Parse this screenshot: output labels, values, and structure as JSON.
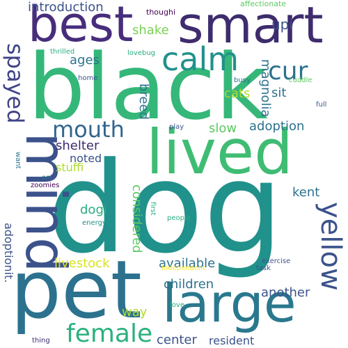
{
  "colors": {
    "dark_purple": "#440154",
    "indigo": "#472d7b",
    "blue": "#3b528b",
    "steel": "#2c728e",
    "teal": "#21918c",
    "green_teal": "#28ae80",
    "green": "#5ec962",
    "lime": "#addc30",
    "yellow": "#fde725"
  },
  "words": [
    {
      "text": "dog",
      "color": "#21918c"
    },
    {
      "text": "black",
      "color": "#35b779"
    },
    {
      "text": "pet",
      "color": "#2c728e"
    },
    {
      "text": "best",
      "color": "#472d7b"
    },
    {
      "text": "smart",
      "color": "#3e2c6e"
    },
    {
      "text": "lived",
      "color": "#3fbc73"
    },
    {
      "text": "mind",
      "color": "#3b528b"
    },
    {
      "text": "large",
      "color": "#2a788e"
    },
    {
      "text": "calm",
      "color": "#21918c"
    },
    {
      "text": "female",
      "color": "#2cb17e"
    },
    {
      "text": "mouth",
      "color": "#31668e"
    },
    {
      "text": "yellow",
      "color": "#3b528b"
    },
    {
      "text": "cur",
      "color": "#2c728e"
    },
    {
      "text": "spayed",
      "color": "#414487"
    },
    {
      "text": "introduction",
      "color": "#3b528b"
    },
    {
      "text": "shake",
      "color": "#7ad151"
    },
    {
      "text": "upi",
      "color": "#3b528b"
    },
    {
      "text": "ages",
      "color": "#2c728e"
    },
    {
      "text": "breed",
      "color": "#2c728e"
    },
    {
      "text": "magnolia",
      "color": "#2c728e"
    },
    {
      "text": "sit",
      "color": "#2c728e"
    },
    {
      "text": "cats",
      "color": "#addc30"
    },
    {
      "text": "adoption",
      "color": "#2c728e"
    },
    {
      "text": "slow",
      "color": "#5ec962"
    },
    {
      "text": "shelter",
      "color": "#3e2c6e"
    },
    {
      "text": "noted",
      "color": "#3b528b"
    },
    {
      "text": "stuffi",
      "color": "#addc30"
    },
    {
      "text": "dogi",
      "color": "#28ae80"
    },
    {
      "text": "considered",
      "color": "#5ec962"
    },
    {
      "text": "kent",
      "color": "#2c728e"
    },
    {
      "text": "adoptionit.",
      "color": "#3b528b"
    },
    {
      "text": "livestock",
      "color": "#d8e219"
    },
    {
      "text": "available",
      "color": "#2c728e"
    },
    {
      "text": "children",
      "color": "#2c728e"
    },
    {
      "text": "another",
      "color": "#3b528b"
    },
    {
      "text": "way",
      "color": "#addc30"
    },
    {
      "text": "center",
      "color": "#3b528b"
    },
    {
      "text": "resident",
      "color": "#3b528b"
    },
    {
      "text": "affectionate",
      "color": "#5ec962"
    },
    {
      "text": "thoughi",
      "color": "#440154"
    },
    {
      "text": "thrilled",
      "color": "#28ae80"
    },
    {
      "text": "lovebug",
      "color": "#28ae80"
    },
    {
      "text": "home",
      "color": "#3b528b"
    },
    {
      "text": "busy",
      "color": "#2c728e"
    },
    {
      "text": "cuddle",
      "color": "#5ec962"
    },
    {
      "text": "full",
      "color": "#3b528b"
    },
    {
      "text": "play",
      "color": "#3b528b"
    },
    {
      "text": "want",
      "color": "#2c728e"
    },
    {
      "text": "zoomies",
      "color": "#440154"
    },
    {
      "text": "oni",
      "color": "#2c728e"
    },
    {
      "text": "energy",
      "color": "#21918c"
    },
    {
      "text": "first",
      "color": "#28ae80"
    },
    {
      "text": "people",
      "color": "#28ae80"
    },
    {
      "text": "exercise",
      "color": "#3b528b"
    },
    {
      "text": "task",
      "color": "#3b528b"
    },
    {
      "text": "independent",
      "color": "#fde725"
    },
    {
      "text": "love",
      "color": "#28ae80"
    },
    {
      "text": "thing",
      "color": "#3e2c6e"
    }
  ]
}
